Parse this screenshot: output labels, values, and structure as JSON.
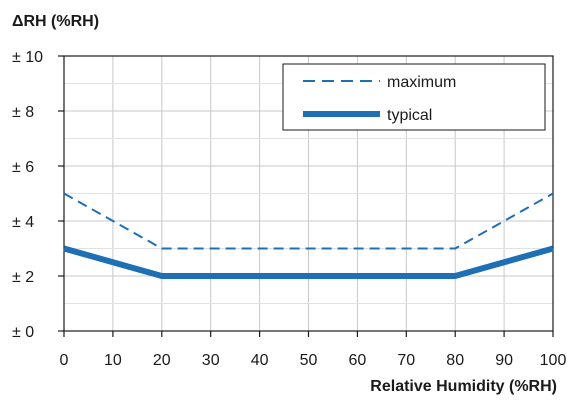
{
  "chart_data": {
    "type": "line",
    "title": "",
    "ylabel": "ΔRH (%RH)",
    "xlabel": "Relative Humidity (%RH)",
    "x": [
      0,
      20,
      80,
      100
    ],
    "xlim": [
      0,
      100
    ],
    "ylim": [
      0,
      10
    ],
    "grid": true,
    "legend_position": "top-right",
    "x_ticks": [
      "0",
      "10",
      "20",
      "30",
      "40",
      "50",
      "60",
      "70",
      "80",
      "90",
      "100"
    ],
    "y_ticks": [
      "± 0",
      "± 2",
      "± 4",
      "± 6",
      "± 8",
      "± 10"
    ],
    "series": [
      {
        "name": "maximum",
        "style": "dashed",
        "color": "#1f6fb4",
        "values": [
          5,
          3,
          3,
          5
        ]
      },
      {
        "name": "typical",
        "style": "solid-thick",
        "color": "#1f6fb4",
        "values": [
          3,
          2,
          2,
          3
        ]
      }
    ]
  }
}
